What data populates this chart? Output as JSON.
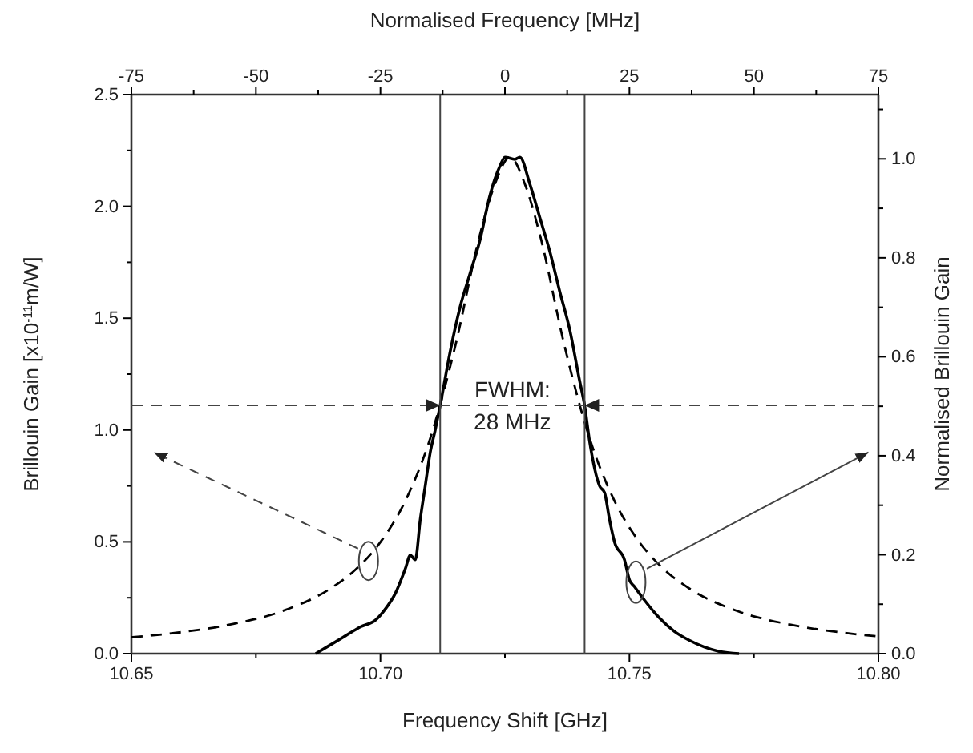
{
  "chart_data": {
    "type": "line",
    "xlabel": "Frequency Shift [GHz]",
    "ylabel": "Brillouin Gain [x10$^{-11}$m/W]",
    "x2label": "Normalised Frequency [MHz]",
    "y2label": "Normalised Brillouin Gain",
    "xlim": [
      10.65,
      10.8
    ],
    "xticks": [
      10.65,
      {
        "value": 10.675,
        "label": null
      },
      "10.70",
      {
        "value": 10.725,
        "label": null
      },
      10.75,
      {
        "value": 10.775,
        "label": null
      },
      "10.80"
    ],
    "ylim": [
      0,
      2.5
    ],
    "yticks": [
      "0.0",
      {
        "value": 0.25,
        "label": null
      },
      0.5,
      {
        "value": 0.75,
        "label": null
      },
      "1.0",
      {
        "value": 1.25,
        "label": null
      },
      1.5,
      {
        "value": 1.75,
        "label": null
      },
      "2.0",
      {
        "value": 2.25,
        "label": null
      },
      2.5
    ],
    "x2lim": [
      -75,
      75
    ],
    "x2ticks": [
      -75,
      {
        "value": -62.5,
        "label": null
      },
      -50,
      {
        "value": -37.5,
        "label": null
      },
      -25,
      {
        "value": -12.5,
        "label": null
      },
      0,
      {
        "value": 12.5,
        "label": null
      },
      25,
      {
        "value": 37.5,
        "label": null
      },
      50,
      {
        "value": 62.5,
        "label": null
      },
      75
    ],
    "y2lim": [
      0,
      1.13
    ],
    "y2ticks": [
      "0.0",
      {
        "value": 0.1,
        "label": null
      },
      0.2,
      {
        "value": 0.3,
        "label": null
      },
      0.4,
      {
        "value": 0.5,
        "label": null
      },
      0.6,
      {
        "value": 0.7,
        "label": null
      },
      0.8,
      {
        "value": 0.9,
        "label": null
      },
      "1.0",
      {
        "value": 1.1,
        "label": null
      }
    ],
    "series": [
      {
        "color": "#000000",
        "line_style": "solid",
        "x": [
          10.687,
          10.69,
          10.693,
          10.696,
          10.699,
          10.701,
          10.703,
          10.705,
          10.706,
          10.707,
          10.708,
          10.709,
          10.71,
          10.711,
          10.712,
          10.714,
          10.716,
          10.718,
          10.72,
          10.722,
          10.724,
          10.725,
          10.727,
          10.728,
          10.73,
          10.732,
          10.734,
          10.736,
          10.738,
          10.74,
          10.741,
          10.742,
          10.744,
          10.745,
          10.746,
          10.747,
          10.749,
          10.75,
          10.751,
          10.753,
          10.756,
          10.759,
          10.762,
          10.765,
          10.768,
          10.772
        ],
        "values": [
          0,
          0.04,
          0.08,
          0.12,
          0.15,
          0.2,
          0.27,
          0.38,
          0.44,
          0.42,
          0.6,
          0.75,
          0.9,
          1.0,
          1.11,
          1.35,
          1.55,
          1.7,
          1.85,
          2.05,
          2.18,
          2.22,
          2.21,
          2.22,
          2.1,
          1.95,
          1.8,
          1.62,
          1.45,
          1.22,
          1.11,
          0.95,
          0.75,
          0.72,
          0.6,
          0.5,
          0.42,
          0.33,
          0.3,
          0.24,
          0.16,
          0.1,
          0.06,
          0.03,
          0.01,
          0
        ]
      },
      {
        "color": "#000000",
        "line_style": "dashed",
        "x": [
          10.65,
          10.66,
          10.67,
          10.68,
          10.69,
          10.695,
          10.7,
          10.705,
          10.71,
          10.715,
          10.72,
          10.723,
          10.726,
          10.729,
          10.732,
          10.737,
          10.742,
          10.747,
          10.752,
          10.757,
          10.762,
          10.772,
          10.782,
          10.792,
          10.8
        ],
        "values": [
          0.073,
          0.096,
          0.131,
          0.188,
          0.292,
          0.376,
          0.499,
          0.683,
          0.963,
          1.373,
          1.875,
          2.1,
          2.22,
          2.1,
          1.875,
          1.373,
          0.963,
          0.683,
          0.499,
          0.376,
          0.292,
          0.188,
          0.131,
          0.096,
          0.077
        ]
      }
    ],
    "ref_lines": [
      {
        "axis": "x",
        "value": 10.712
      },
      {
        "axis": "x",
        "value": 10.741
      },
      {
        "axis": "y",
        "value": 1.11,
        "line_style": "dashed"
      }
    ],
    "annotations": [
      "FWHM: 28 MHz"
    ]
  }
}
